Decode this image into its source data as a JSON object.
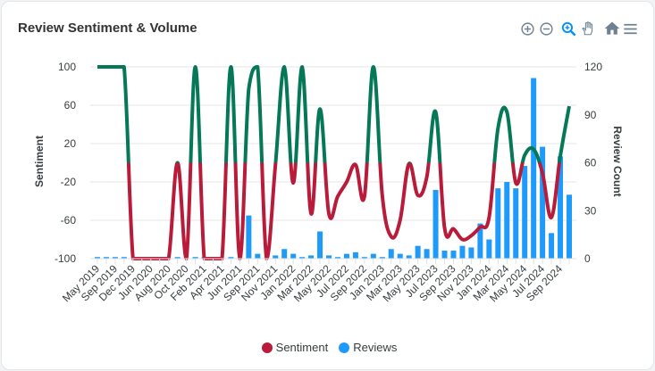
{
  "header": {
    "title": "Review Sentiment & Volume"
  },
  "toolbar": {
    "icons": [
      "zoom-in-icon",
      "zoom-out-icon",
      "selection-zoom-icon",
      "pan-icon",
      "home-icon",
      "menu-icon"
    ],
    "active": "selection-zoom-icon",
    "active_color": "#008ffb",
    "icon_color": "#6e8192"
  },
  "colors": {
    "sentiment_positive": "#047857",
    "sentiment_negative": "#b91c3a",
    "reviews": "#1e9bfa",
    "grid": "#e6e6e6"
  },
  "chart_data": {
    "type": "line+bar",
    "title": "Review Sentiment & Volume",
    "x_tick_labels": [
      "May 2019",
      "Sep 2019",
      "Dec 2019",
      "Jun 2020",
      "Aug 2020",
      "Oct 2020",
      "Feb 2021",
      "Apr 2021",
      "Jun 2021",
      "Sep 2021",
      "Nov 2021",
      "Jan 2022",
      "Mar 2022",
      "May 2022",
      "Jul 2022",
      "Sep 2022",
      "Jan 2023",
      "Mar 2023",
      "May 2023",
      "Jul 2023",
      "Sep 2023",
      "Nov 2023",
      "Jan 2024",
      "Mar 2024",
      "May 2024",
      "Jul 2024",
      "Sep 2024"
    ],
    "x_tick_label_every": 2,
    "y_left": {
      "label": "Sentiment",
      "range": [
        -100,
        100
      ],
      "ticks": [
        "100",
        "60",
        "20",
        "-20",
        "-60",
        "-100"
      ]
    },
    "y_right": {
      "label": "Review Count",
      "range": [
        0,
        120
      ],
      "ticks": [
        "120",
        "90",
        "60",
        "30",
        "0"
      ]
    },
    "grid": true,
    "legend_position": "bottom",
    "series": [
      {
        "name": "Sentiment",
        "type": "line",
        "axis": "left",
        "values": [
          100,
          100,
          100,
          100,
          -100,
          -100,
          -100,
          -100,
          -100,
          0,
          -100,
          100,
          -100,
          -100,
          -100,
          100,
          -100,
          77,
          100,
          -100,
          -2,
          100,
          -21,
          100,
          -53,
          56,
          -53,
          -35,
          -20,
          -2,
          -35,
          100,
          -34,
          -77,
          -60,
          -1,
          -34,
          -15,
          53,
          -68,
          -69,
          -80,
          -76,
          -67,
          -57,
          36,
          53,
          -21,
          8,
          14,
          -11,
          -57,
          7,
          59
        ]
      },
      {
        "name": "Reviews",
        "type": "bar",
        "axis": "right",
        "values": [
          1,
          1,
          1,
          1,
          0,
          0,
          0,
          0,
          0,
          1,
          0,
          1,
          1,
          0,
          0,
          1,
          0,
          27,
          3,
          0,
          2,
          6,
          3,
          1,
          2,
          17,
          2,
          1,
          3,
          4,
          1,
          3,
          1,
          6,
          3,
          2,
          8,
          6,
          43,
          5,
          5,
          8,
          7,
          22,
          12,
          44,
          48,
          44,
          58,
          113,
          70,
          16,
          64,
          40
        ]
      }
    ]
  },
  "legend": [
    {
      "label": "Sentiment"
    },
    {
      "label": "Reviews"
    }
  ]
}
